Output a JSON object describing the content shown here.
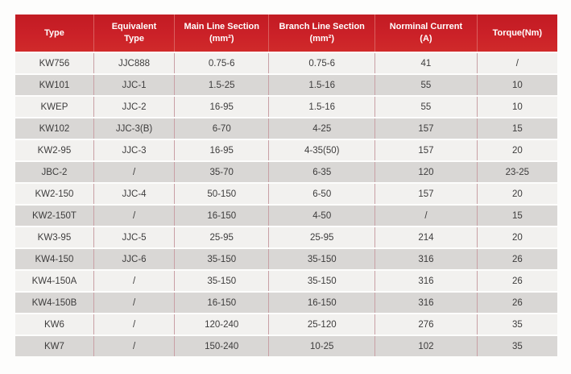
{
  "table": {
    "name": "connector-spec-table",
    "columns": [
      {
        "id": "type",
        "lines": [
          "Type"
        ]
      },
      {
        "id": "equivalent-type",
        "lines": [
          "Equivalent",
          "Type"
        ]
      },
      {
        "id": "main-line",
        "lines": [
          "Main Line Section",
          "(mm²)"
        ]
      },
      {
        "id": "branch-line",
        "lines": [
          "Branch Line Section",
          "(mm²)"
        ]
      },
      {
        "id": "norminal-current",
        "lines": [
          "Norminal Current",
          "(A)"
        ]
      },
      {
        "id": "torque",
        "lines": [
          "Torque(Nm)"
        ]
      }
    ],
    "rows": [
      [
        "KW756",
        "JJC888",
        "0.75-6",
        "0.75-6",
        "41",
        "/"
      ],
      [
        "KW101",
        "JJC-1",
        "1.5-25",
        "1.5-16",
        "55",
        "10"
      ],
      [
        "KWEP",
        "JJC-2",
        "16-95",
        "1.5-16",
        "55",
        "10"
      ],
      [
        "KW102",
        "JJC-3(B)",
        "6-70",
        "4-25",
        "157",
        "15"
      ],
      [
        "KW2-95",
        "JJC-3",
        "16-95",
        "4-35(50)",
        "157",
        "20"
      ],
      [
        "JBC-2",
        "/",
        "35-70",
        "6-35",
        "120",
        "23-25"
      ],
      [
        "KW2-150",
        "JJC-4",
        "50-150",
        "6-50",
        "157",
        "20"
      ],
      [
        "KW2-150T",
        "/",
        "16-150",
        "4-50",
        "/",
        "15"
      ],
      [
        "KW3-95",
        "JJC-5",
        "25-95",
        "25-95",
        "214",
        "20"
      ],
      [
        "KW4-150",
        "JJC-6",
        "35-150",
        "35-150",
        "316",
        "26"
      ],
      [
        "KW4-150A",
        "/",
        "35-150",
        "35-150",
        "316",
        "26"
      ],
      [
        "KW4-150B",
        "/",
        "16-150",
        "16-150",
        "316",
        "26"
      ],
      [
        "KW6",
        "/",
        "120-240",
        "25-120",
        "276",
        "35"
      ],
      [
        "KW7",
        "/",
        "150-240",
        "10-25",
        "102",
        "35"
      ]
    ],
    "colors": {
      "header_bg": "#c9202a",
      "header_separator": "#da5f5e",
      "row_light": "#f2f1ef",
      "row_dark": "#d9d7d5",
      "cell_separator": "#c9a0a5",
      "body_text": "#3d3c3c",
      "header_text": "#ffffff"
    }
  }
}
